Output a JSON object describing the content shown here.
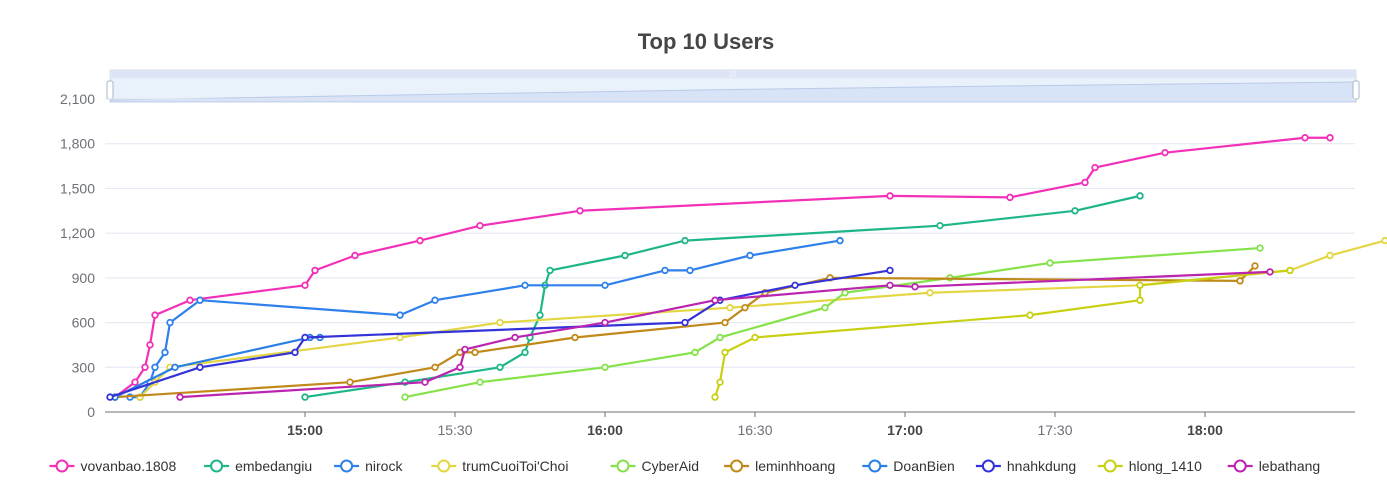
{
  "chart_data": {
    "type": "line",
    "title": "Top 10 Users",
    "xlabel": "",
    "ylabel": "",
    "ylim": [
      0,
      2100
    ],
    "yticks": [
      "0",
      "300",
      "600",
      "900",
      "1,200",
      "1,500",
      "1,800",
      "2,100"
    ],
    "xlim": [
      "14:20",
      "18:30"
    ],
    "xticks": [
      "15:00",
      "15:30",
      "16:00",
      "16:30",
      "17:00",
      "17:30",
      "18:00"
    ],
    "xticks_bold": [
      "15:00",
      "16:00",
      "17:00",
      "18:00"
    ],
    "grid": true,
    "legend_position": "bottom",
    "data_zoom_slider": true,
    "series": [
      {
        "name": "vovanbao.1808",
        "color": "#f230b8",
        "points": [
          [
            "14:22",
            100
          ],
          [
            "14:26",
            200
          ],
          [
            "14:28",
            300
          ],
          [
            "14:29",
            450
          ],
          [
            "14:30",
            650
          ],
          [
            "14:37",
            750
          ],
          [
            "15:00",
            850
          ],
          [
            "15:02",
            950
          ],
          [
            "15:10",
            1050
          ],
          [
            "15:23",
            1150
          ],
          [
            "15:35",
            1250
          ],
          [
            "15:55",
            1350
          ],
          [
            "16:57",
            1450
          ],
          [
            "17:21",
            1440
          ],
          [
            "17:36",
            1540
          ],
          [
            "17:38",
            1640
          ],
          [
            "17:52",
            1740
          ],
          [
            "18:20",
            1840
          ],
          [
            "18:25",
            1840
          ]
        ]
      },
      {
        "name": "embedangiu",
        "color": "#1eb689",
        "points": [
          [
            "15:00",
            100
          ],
          [
            "15:20",
            200
          ],
          [
            "15:39",
            300
          ],
          [
            "15:44",
            400
          ],
          [
            "15:45",
            500
          ],
          [
            "15:47",
            650
          ],
          [
            "15:48",
            850
          ],
          [
            "15:49",
            950
          ],
          [
            "16:04",
            1050
          ],
          [
            "16:16",
            1150
          ],
          [
            "17:07",
            1250
          ],
          [
            "17:34",
            1350
          ],
          [
            "17:47",
            1450
          ]
        ]
      },
      {
        "name": "nirock",
        "color": "#2f80ea",
        "points": [
          [
            "14:25",
            100
          ],
          [
            "14:27",
            100
          ],
          [
            "14:29",
            200
          ],
          [
            "14:30",
            300
          ],
          [
            "14:32",
            400
          ],
          [
            "14:33",
            600
          ],
          [
            "14:39",
            750
          ],
          [
            "15:19",
            650
          ],
          [
            "15:26",
            750
          ],
          [
            "15:44",
            850
          ],
          [
            "16:00",
            850
          ],
          [
            "16:12",
            950
          ],
          [
            "16:17",
            950
          ],
          [
            "16:29",
            1050
          ],
          [
            "16:47",
            1150
          ]
        ]
      },
      {
        "name": "trumCuoiToi'Choi",
        "color": "#e3d643",
        "points": [
          [
            "14:27",
            100
          ],
          [
            "14:30",
            200
          ],
          [
            "14:33",
            300
          ],
          [
            "15:19",
            500
          ],
          [
            "15:39",
            600
          ],
          [
            "16:25",
            700
          ],
          [
            "17:05",
            800
          ],
          [
            "17:47",
            850
          ],
          [
            "18:17",
            950
          ],
          [
            "18:25",
            1050
          ],
          [
            "18:36",
            1150
          ]
        ]
      },
      {
        "name": "CyberAid",
        "color": "#86e24a",
        "points": [
          [
            "15:20",
            100
          ],
          [
            "15:35",
            200
          ],
          [
            "16:00",
            300
          ],
          [
            "16:18",
            400
          ],
          [
            "16:23",
            500
          ],
          [
            "16:44",
            700
          ],
          [
            "16:48",
            800
          ],
          [
            "17:09",
            900
          ],
          [
            "17:29",
            1000
          ],
          [
            "18:11",
            1100
          ]
        ]
      },
      {
        "name": "leminhhoang",
        "color": "#c0891a",
        "points": [
          [
            "14:22",
            100
          ],
          [
            "15:09",
            200
          ],
          [
            "15:26",
            300
          ],
          [
            "15:31",
            400
          ],
          [
            "15:34",
            400
          ],
          [
            "15:54",
            500
          ],
          [
            "16:24",
            600
          ],
          [
            "16:28",
            700
          ],
          [
            "16:32",
            800
          ],
          [
            "16:45",
            900
          ],
          [
            "18:07",
            880
          ],
          [
            "18:10",
            980
          ]
        ]
      },
      {
        "name": "DoanBien",
        "color": "#2a7fe6",
        "points": [
          [
            "14:22",
            100
          ],
          [
            "14:34",
            300
          ],
          [
            "15:01",
            500
          ],
          [
            "15:03",
            500
          ]
        ]
      },
      {
        "name": "hnahkdung",
        "color": "#3333d9",
        "points": [
          [
            "14:21",
            100
          ],
          [
            "14:39",
            300
          ],
          [
            "14:58",
            400
          ],
          [
            "15:00",
            500
          ],
          [
            "16:16",
            600
          ],
          [
            "16:23",
            750
          ],
          [
            "16:38",
            850
          ],
          [
            "16:57",
            950
          ]
        ]
      },
      {
        "name": "hlong_1410",
        "color": "#c9cf12",
        "points": [
          [
            "16:22",
            100
          ],
          [
            "16:23",
            200
          ],
          [
            "16:24",
            400
          ],
          [
            "16:30",
            500
          ],
          [
            "17:25",
            650
          ],
          [
            "17:47",
            750
          ],
          [
            "17:47",
            850
          ],
          [
            "18:17",
            950
          ]
        ]
      },
      {
        "name": "lebathang",
        "color": "#bb24b0",
        "points": [
          [
            "14:35",
            100
          ],
          [
            "15:24",
            200
          ],
          [
            "15:31",
            300
          ],
          [
            "15:32",
            420
          ],
          [
            "15:42",
            500
          ],
          [
            "16:00",
            600
          ],
          [
            "16:22",
            750
          ],
          [
            "16:57",
            850
          ],
          [
            "17:02",
            840
          ],
          [
            "18:13",
            940
          ]
        ]
      }
    ]
  }
}
